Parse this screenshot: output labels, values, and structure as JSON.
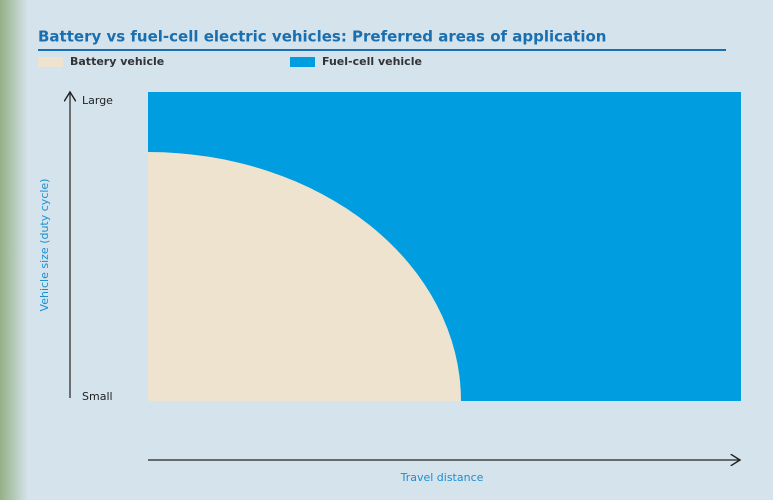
{
  "title": "Battery vs fuel-cell electric vehicles: Preferred areas of application",
  "legend": [
    "Battery vehicle",
    "Fuel-cell vehicle"
  ],
  "y_axis": {
    "label": "Vehicle size (duty cycle)",
    "top": "Large",
    "bottom": "Small"
  },
  "x_axis": {
    "label": "Travel distance"
  }
}
